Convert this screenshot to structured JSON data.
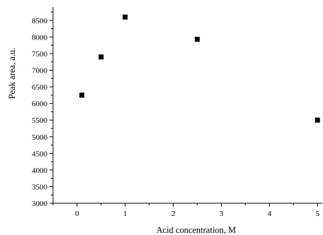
{
  "chart_data": {
    "type": "scatter",
    "xlabel": "Acid concentration, M",
    "ylabel": "Peak area, a.u.",
    "xlim": [
      -0.5,
      5.1
    ],
    "ylim": [
      3000,
      8900
    ],
    "x_ticks": [
      0,
      1,
      2,
      3,
      4,
      5
    ],
    "y_ticks": [
      3000,
      3500,
      4000,
      4500,
      5000,
      5500,
      6000,
      6500,
      7000,
      7500,
      8000,
      8500
    ],
    "x_minor_step": 0.5,
    "y_minor_step": 250,
    "grid": false,
    "marker": "square",
    "color": "#000000",
    "points": [
      {
        "x": 0.1,
        "y": 6250
      },
      {
        "x": 0.5,
        "y": 7400
      },
      {
        "x": 1.0,
        "y": 8600
      },
      {
        "x": 2.5,
        "y": 7930
      },
      {
        "x": 5.0,
        "y": 5500
      }
    ]
  }
}
